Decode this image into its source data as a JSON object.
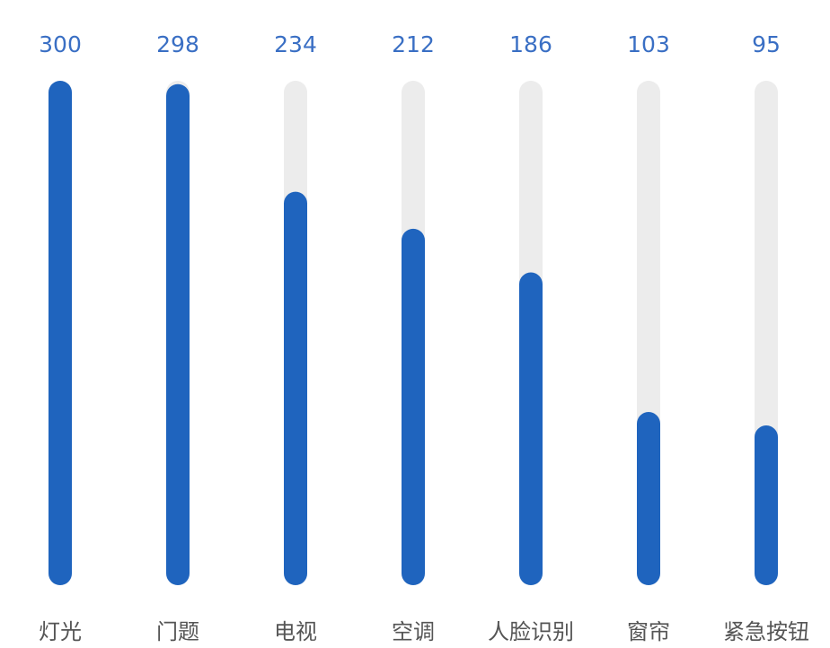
{
  "chart_data": {
    "type": "bar",
    "categories": [
      "灯光",
      "门题",
      "电视",
      "空调",
      "人脸识别",
      "窗帘",
      "紧急按钮"
    ],
    "values": [
      300,
      298,
      234,
      212,
      186,
      103,
      95
    ],
    "ylim": [
      0,
      300
    ],
    "grid": false,
    "orientation": "vertical",
    "colors": {
      "bar": "#1f64be",
      "track": "#ececec",
      "value_label": "#3a6fc4",
      "category_label": "#555555"
    }
  }
}
